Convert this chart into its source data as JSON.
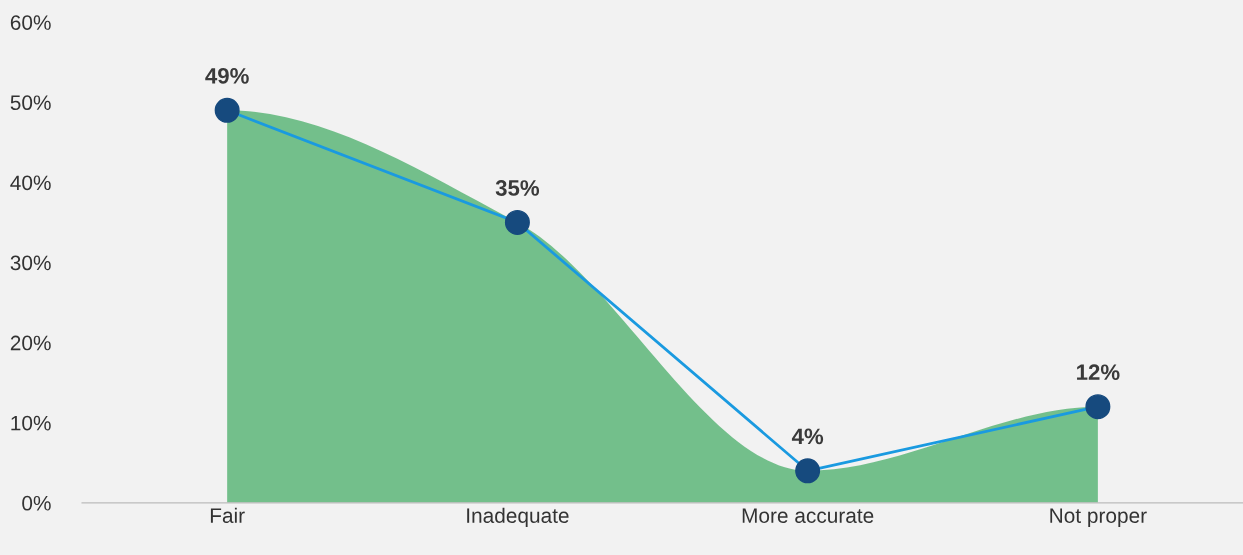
{
  "chart_data": {
    "type": "area",
    "categories": [
      "Fair",
      "Inadequate",
      "More accurate",
      "Not proper"
    ],
    "ylim": [
      0,
      60
    ],
    "yticks": [
      {
        "value": 0,
        "label": "0%"
      },
      {
        "value": 10,
        "label": "10%"
      },
      {
        "value": 20,
        "label": "20%"
      },
      {
        "value": 30,
        "label": "30%"
      },
      {
        "value": 40,
        "label": "40%"
      },
      {
        "value": 50,
        "label": "50%"
      },
      {
        "value": 60,
        "label": "60%"
      }
    ],
    "series": [
      {
        "color": "#1a9ae0",
        "values": [
          49,
          35,
          4,
          12
        ],
        "value_labels": [
          "49%",
          "35%",
          "4%",
          "12%"
        ]
      }
    ],
    "marker": "circle",
    "grid": false,
    "legend": false
  }
}
